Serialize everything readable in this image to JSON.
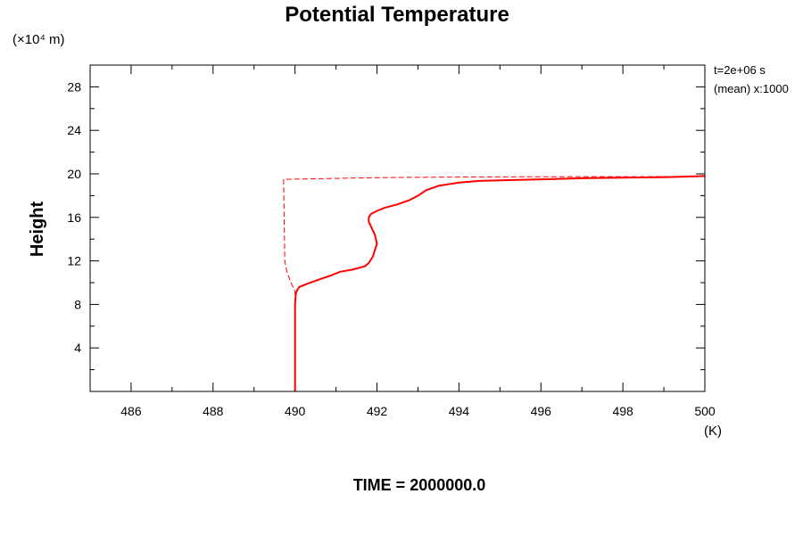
{
  "chart_data": {
    "type": "line",
    "title": "Potential Temperature",
    "ylabel": "Height",
    "y_unit": "(×10⁴ m)",
    "x_unit": "(K)",
    "xlim": [
      485,
      500
    ],
    "ylim": [
      0,
      30
    ],
    "x_ticks": [
      "486",
      "488",
      "490",
      "492",
      "494",
      "496",
      "498",
      "500"
    ],
    "y_ticks": [
      "4",
      "8",
      "12",
      "16",
      "20",
      "24",
      "28"
    ],
    "annotation_time": "t=2e+06 s",
    "annotation_mean": "(mean) x:1000",
    "footer": "TIME = 2000000.0",
    "line_color": "#ff0000",
    "series": [
      {
        "style": "solid",
        "x": [
          490.0,
          490.0,
          490.02,
          490.05,
          490.1,
          490.3,
          490.6,
          490.9,
          491.1,
          491.4,
          491.7,
          491.8,
          491.9,
          491.95,
          492.0,
          491.95,
          491.85,
          491.8,
          491.8,
          491.85,
          492.0,
          492.2,
          492.5,
          492.8,
          493.0,
          493.2,
          493.5,
          494.0,
          494.5,
          495.0,
          496.0,
          497.0,
          498.0,
          499.0,
          499.5,
          500.0
        ],
        "y": [
          0.0,
          8.0,
          9.0,
          9.3,
          9.6,
          9.9,
          10.3,
          10.7,
          11.0,
          11.2,
          11.5,
          11.8,
          12.4,
          13.0,
          13.6,
          14.4,
          15.2,
          15.6,
          16.0,
          16.3,
          16.6,
          16.9,
          17.2,
          17.6,
          18.0,
          18.5,
          18.9,
          19.2,
          19.35,
          19.4,
          19.5,
          19.6,
          19.65,
          19.7,
          19.75,
          19.8
        ]
      },
      {
        "style": "dashed",
        "x": [
          490.0,
          490.0,
          490.0,
          489.9,
          489.8,
          489.75,
          489.72,
          489.75,
          490.5,
          491.5,
          492.5,
          493.5,
          494.5,
          495.5,
          496.5,
          497.5,
          498.5,
          499.5,
          500.0
        ],
        "y": [
          0.0,
          8.0,
          9.2,
          10.0,
          11.0,
          12.0,
          19.5,
          19.5,
          19.55,
          19.62,
          19.67,
          19.7,
          19.72,
          19.73,
          19.74,
          19.75,
          19.75,
          19.76,
          19.76
        ]
      }
    ]
  }
}
